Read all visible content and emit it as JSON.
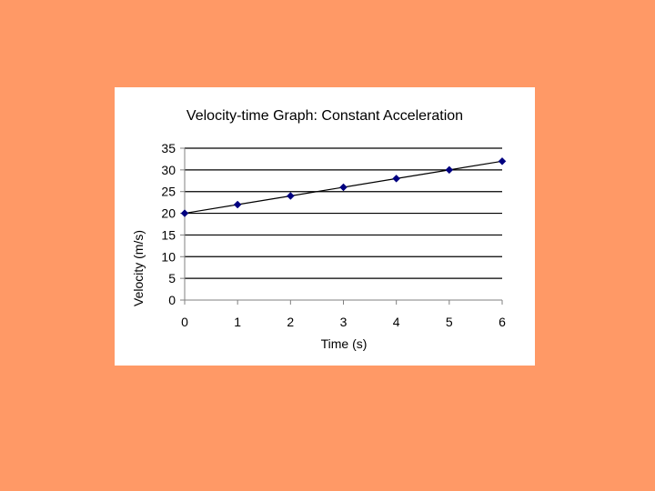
{
  "colors": {
    "background": "#FF9966",
    "panel": "#FFFFFF",
    "gridline": "#000000",
    "series_line": "#000000",
    "marker": "#000080"
  },
  "chart_data": {
    "type": "line",
    "title": "Velocity-time Graph: Constant Acceleration",
    "xlabel": "Time (s)",
    "ylabel": "Velocity (m/s)",
    "xlim": [
      0,
      6
    ],
    "ylim": [
      0,
      35
    ],
    "x_ticks": [
      "0",
      "1",
      "2",
      "3",
      "4",
      "5",
      "6"
    ],
    "y_ticks": [
      "0",
      "5",
      "10",
      "15",
      "20",
      "25",
      "30",
      "35"
    ],
    "grid": "horizontal",
    "legend": "none",
    "marker": "diamond",
    "series": [
      {
        "x": [
          0,
          1,
          2,
          3,
          4,
          5,
          6
        ],
        "values": [
          20,
          22,
          24,
          26,
          28,
          30,
          32
        ]
      }
    ]
  }
}
